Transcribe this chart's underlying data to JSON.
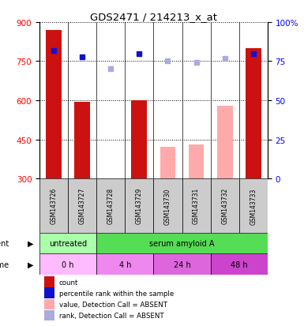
{
  "title": "GDS2471 / 214213_x_at",
  "samples": [
    "GSM143726",
    "GSM143727",
    "GSM143728",
    "GSM143729",
    "GSM143730",
    "GSM143731",
    "GSM143732",
    "GSM143733"
  ],
  "bar_values": [
    870,
    595,
    null,
    600,
    null,
    null,
    null,
    800
  ],
  "bar_absent_values": [
    null,
    null,
    null,
    null,
    420,
    430,
    580,
    null
  ],
  "bar_color_present": "#cc1111",
  "bar_color_absent": "#ffaaaa",
  "rank_present": [
    82,
    78,
    null,
    80,
    null,
    null,
    null,
    80
  ],
  "rank_absent": [
    null,
    null,
    70,
    null,
    75,
    74,
    77,
    null
  ],
  "rank_color_present": "#1111cc",
  "rank_color_absent": "#aaaadd",
  "ylim_left": [
    300,
    900
  ],
  "ylim_right": [
    0,
    100
  ],
  "yticks_left": [
    300,
    450,
    600,
    750,
    900
  ],
  "yticks_right": [
    0,
    25,
    50,
    75,
    100
  ],
  "ytick_right_labels": [
    "0",
    "25",
    "50",
    "75",
    "100%"
  ],
  "agent_labels": [
    {
      "label": "untreated",
      "start": 0,
      "end": 2,
      "color": "#aaffaa"
    },
    {
      "label": "serum amyloid A",
      "start": 2,
      "end": 8,
      "color": "#55dd55"
    }
  ],
  "time_labels": [
    {
      "label": "0 h",
      "start": 0,
      "end": 2,
      "color": "#ffbbff"
    },
    {
      "label": "4 h",
      "start": 2,
      "end": 4,
      "color": "#ee88ee"
    },
    {
      "label": "24 h",
      "start": 4,
      "end": 6,
      "color": "#dd66dd"
    },
    {
      "label": "48 h",
      "start": 6,
      "end": 8,
      "color": "#cc44cc"
    }
  ],
  "legend_colors": [
    "#cc1111",
    "#1111cc",
    "#ffaaaa",
    "#aaaadd"
  ],
  "legend_labels": [
    "count",
    "percentile rank within the sample",
    "value, Detection Call = ABSENT",
    "rank, Detection Call = ABSENT"
  ],
  "bar_width": 0.55,
  "grid_color": "#000000",
  "background_color": "#ffffff",
  "sample_box_color": "#cccccc"
}
